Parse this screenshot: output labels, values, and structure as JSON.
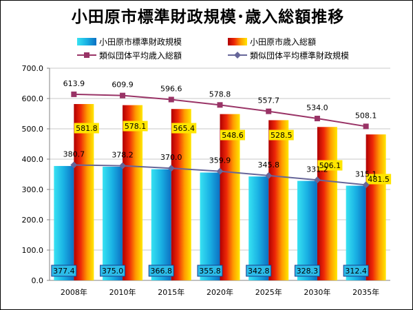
{
  "chart_data": {
    "type": "bar",
    "title": "小田原市標準財政規模･歳入総額推移",
    "categories": [
      "2008年",
      "2010年",
      "2015年",
      "2020年",
      "2025年",
      "2030年",
      "2035年"
    ],
    "ylim": [
      0,
      700
    ],
    "yticks": [
      "0.0",
      "100.0",
      "200.0",
      "300.0",
      "400.0",
      "500.0",
      "600.0",
      "700.0"
    ],
    "grid": true,
    "legend": "top",
    "series": [
      {
        "name": "小田原市標準財政規模",
        "type": "bar",
        "values": [
          377.4,
          375.0,
          366.8,
          355.8,
          342.8,
          328.3,
          312.4
        ],
        "data_labels": [
          "377.4",
          "375.0",
          "366.8",
          "355.8",
          "342.8",
          "328.3",
          "312.4"
        ],
        "gradient": [
          "#38e2f2",
          "#19b0e3",
          "#0c6fc2"
        ],
        "label_fill": "#2cbbe8"
      },
      {
        "name": "小田原市歳入総額",
        "type": "bar",
        "values": [
          581.8,
          578.1,
          565.4,
          548.6,
          528.5,
          506.1,
          481.5
        ],
        "data_labels": [
          "581.8",
          "578.1",
          "565.4",
          "548.6",
          "528.5",
          "506.1",
          "481.5"
        ],
        "gradient": [
          "#b00000",
          "#ee2808",
          "#ff9c00",
          "#ffe800"
        ],
        "label_fill": "#ffe600"
      },
      {
        "name": "類似団体平均歳入総額",
        "type": "line",
        "marker": "square",
        "values": [
          613.9,
          609.9,
          596.6,
          578.8,
          557.7,
          534.0,
          508.1
        ],
        "data_labels": [
          "613.9",
          "609.9",
          "596.6",
          "578.8",
          "557.7",
          "534.0",
          "508.1"
        ],
        "color": "#993366"
      },
      {
        "name": "類似団体平均標準財政規模",
        "type": "line",
        "marker": "diamond",
        "values": [
          380.7,
          378.2,
          370.0,
          359.9,
          345.8,
          331.2,
          315.1
        ],
        "data_labels": [
          "380.7",
          "378.2",
          "370.0",
          "359.9",
          "345.8",
          "331.2",
          "315.1"
        ],
        "color": "#666699"
      }
    ]
  }
}
